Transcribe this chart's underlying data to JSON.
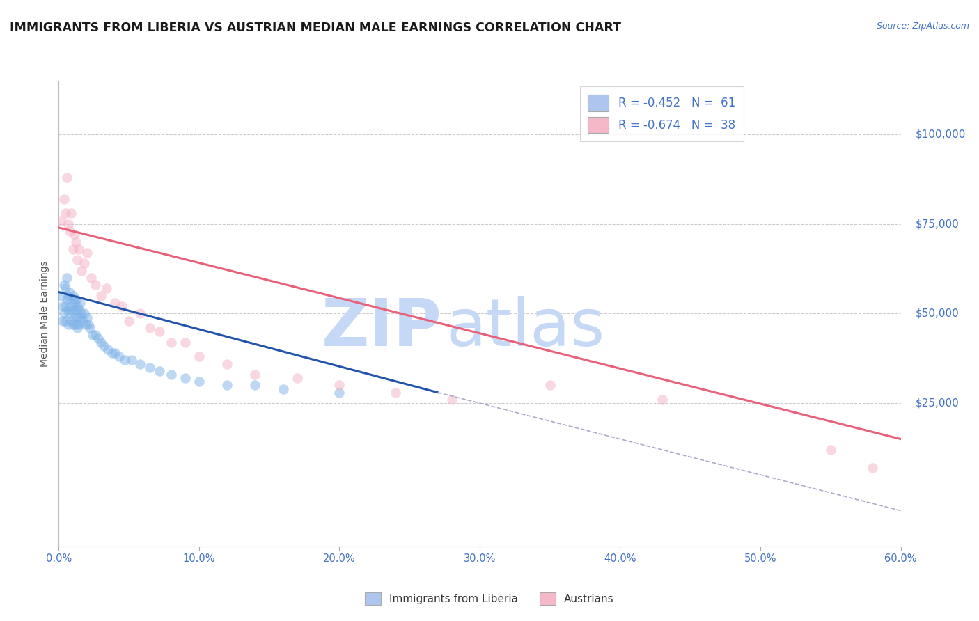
{
  "title": "IMMIGRANTS FROM LIBERIA VS AUSTRIAN MEDIAN MALE EARNINGS CORRELATION CHART",
  "source_text": "Source: ZipAtlas.com",
  "ylabel": "Median Male Earnings",
  "xlim": [
    0.0,
    0.6
  ],
  "ylim": [
    -15000,
    115000
  ],
  "ytick_positions": [
    25000,
    50000,
    75000,
    100000
  ],
  "ytick_labels": [
    "$25,000",
    "$50,000",
    "$75,000",
    "$100,000"
  ],
  "xtick_positions": [
    0.0,
    0.1,
    0.2,
    0.3,
    0.4,
    0.5,
    0.6
  ],
  "xtick_labels": [
    "0.0%",
    "10.0%",
    "20.0%",
    "30.0%",
    "40.0%",
    "50.0%",
    "60.0%"
  ],
  "title_color": "#1a1a1a",
  "title_fontsize": 12.5,
  "axis_tick_color": "#4472c4",
  "source_color": "#4472c4",
  "watermark_zip_color": "#c5d8f5",
  "watermark_atlas_color": "#c5d8f5",
  "legend_color1": "#aec6ef",
  "legend_color2": "#f5b8c8",
  "scatter_color1": "#7fb3e8",
  "scatter_color2": "#f5b0c5",
  "scatter_alpha": 0.5,
  "scatter_size": 110,
  "line_color1": "#2255aa",
  "line_color2": "#e8607a",
  "line_width": 2.2,
  "dashed_color": "#aaaacc",
  "blue_scatter_x": [
    0.002,
    0.003,
    0.003,
    0.004,
    0.004,
    0.005,
    0.005,
    0.005,
    0.006,
    0.006,
    0.007,
    0.007,
    0.007,
    0.008,
    0.008,
    0.009,
    0.009,
    0.009,
    0.01,
    0.01,
    0.01,
    0.011,
    0.011,
    0.012,
    0.012,
    0.012,
    0.013,
    0.013,
    0.013,
    0.014,
    0.014,
    0.015,
    0.015,
    0.016,
    0.017,
    0.018,
    0.019,
    0.02,
    0.021,
    0.022,
    0.024,
    0.026,
    0.028,
    0.03,
    0.032,
    0.035,
    0.038,
    0.04,
    0.043,
    0.047,
    0.052,
    0.058,
    0.065,
    0.072,
    0.08,
    0.09,
    0.1,
    0.12,
    0.14,
    0.16,
    0.2
  ],
  "blue_scatter_y": [
    55000,
    52000,
    48000,
    58000,
    50000,
    57000,
    52000,
    48000,
    60000,
    54000,
    55000,
    51000,
    47000,
    56000,
    50000,
    54000,
    52000,
    48000,
    55000,
    51000,
    47000,
    53000,
    49000,
    54000,
    51000,
    47000,
    52000,
    49000,
    46000,
    51000,
    47000,
    53000,
    49000,
    50000,
    48000,
    50000,
    47000,
    49000,
    47000,
    46000,
    44000,
    44000,
    43000,
    42000,
    41000,
    40000,
    39000,
    39000,
    38000,
    37000,
    37000,
    36000,
    35000,
    34000,
    33000,
    32000,
    31000,
    30000,
    30000,
    29000,
    28000
  ],
  "pink_scatter_x": [
    0.002,
    0.004,
    0.005,
    0.006,
    0.007,
    0.008,
    0.009,
    0.01,
    0.011,
    0.012,
    0.013,
    0.014,
    0.016,
    0.018,
    0.02,
    0.023,
    0.026,
    0.03,
    0.034,
    0.04,
    0.045,
    0.05,
    0.058,
    0.065,
    0.072,
    0.08,
    0.09,
    0.1,
    0.12,
    0.14,
    0.17,
    0.2,
    0.24,
    0.28,
    0.35,
    0.43,
    0.55,
    0.58
  ],
  "pink_scatter_y": [
    76000,
    82000,
    78000,
    88000,
    75000,
    73000,
    78000,
    68000,
    72000,
    70000,
    65000,
    68000,
    62000,
    64000,
    67000,
    60000,
    58000,
    55000,
    57000,
    53000,
    52000,
    48000,
    50000,
    46000,
    45000,
    42000,
    42000,
    38000,
    36000,
    33000,
    32000,
    30000,
    28000,
    26000,
    30000,
    26000,
    12000,
    7000
  ],
  "blue_line_x": [
    0.0,
    0.27
  ],
  "blue_line_y": [
    56000,
    28000
  ],
  "pink_line_x": [
    0.0,
    0.6
  ],
  "pink_line_y": [
    74000,
    15000
  ],
  "dashed_line_x": [
    0.27,
    0.6
  ],
  "dashed_line_y": [
    28000,
    -5000
  ],
  "grid_color": "#cccccc",
  "grid_linestyle": "--",
  "bg_color": "#ffffff",
  "bottom_legend_text1": "Immigrants from Liberia",
  "bottom_legend_text2": "Austrians",
  "bottom_legend_text_color": "#333333",
  "legend_box_text_color": "#4472c4"
}
